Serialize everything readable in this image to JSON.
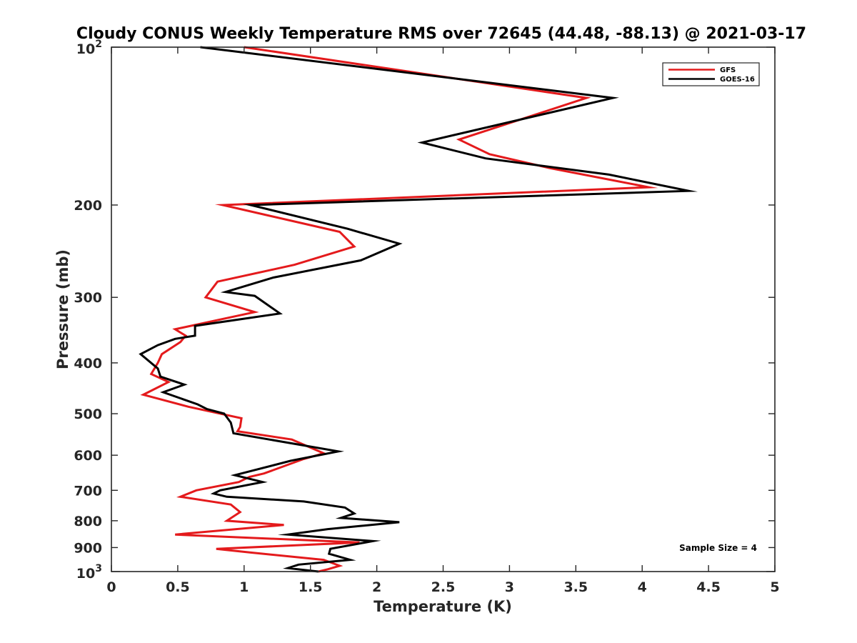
{
  "chart_data": {
    "type": "line",
    "title": "Cloudy CONUS Weekly Temperature RMS over 72645 (44.48, -88.13) @ 2021-03-17",
    "xlabel": "Temperature (K)",
    "ylabel": "Pressure (mb)",
    "xlim": [
      0,
      5
    ],
    "ylim": [
      100,
      1000
    ],
    "y_scale": "log",
    "y_reversed": true,
    "x_ticks": [
      0,
      0.5,
      1,
      1.5,
      2,
      2.5,
      3,
      3.5,
      4,
      4.5,
      5
    ],
    "x_tick_labels": [
      "0",
      "0.5",
      "1",
      "1.5",
      "2",
      "2.5",
      "3",
      "3.5",
      "4",
      "4.5",
      "5"
    ],
    "y_ticks": [
      200,
      300,
      400,
      500,
      600,
      700,
      800,
      900
    ],
    "y_tick_labels": [
      "200",
      "300",
      "400",
      "500",
      "600",
      "700",
      "800",
      "900"
    ],
    "y_decade_ticks": [
      {
        "value": 100,
        "base": "10",
        "exp": "2"
      },
      {
        "value": 1000,
        "base": "10",
        "exp": "3"
      }
    ],
    "grid": false,
    "legend_position": "top-right",
    "annotation": "Sample Size = 4",
    "series": [
      {
        "name": "GFS",
        "color": "#e41a1c",
        "points": [
          [
            1.0,
            100
          ],
          [
            3.58,
            125
          ],
          [
            2.62,
            150
          ],
          [
            2.85,
            160
          ],
          [
            3.3,
            170
          ],
          [
            4.05,
            185
          ],
          [
            0.84,
            200
          ],
          [
            1.72,
            225
          ],
          [
            1.83,
            240
          ],
          [
            1.38,
            260
          ],
          [
            0.8,
            280
          ],
          [
            0.71,
            300
          ],
          [
            1.08,
            320
          ],
          [
            0.48,
            345
          ],
          [
            0.56,
            355
          ],
          [
            0.52,
            365
          ],
          [
            0.38,
            385
          ],
          [
            0.35,
            400
          ],
          [
            0.3,
            420
          ],
          [
            0.43,
            435
          ],
          [
            0.24,
            460
          ],
          [
            0.58,
            485
          ],
          [
            0.98,
            510
          ],
          [
            0.97,
            530
          ],
          [
            0.95,
            540
          ],
          [
            1.36,
            560
          ],
          [
            1.6,
            595
          ],
          [
            1.45,
            610
          ],
          [
            1.15,
            650
          ],
          [
            1.04,
            660
          ],
          [
            0.96,
            675
          ],
          [
            0.64,
            700
          ],
          [
            0.52,
            720
          ],
          [
            0.9,
            745
          ],
          [
            0.97,
            770
          ],
          [
            0.87,
            800
          ],
          [
            1.3,
            815
          ],
          [
            0.48,
            850
          ],
          [
            1.87,
            880
          ],
          [
            0.79,
            905
          ],
          [
            1.05,
            920
          ],
          [
            1.6,
            950
          ],
          [
            1.72,
            975
          ],
          [
            1.63,
            990
          ],
          [
            1.56,
            1000
          ]
        ]
      },
      {
        "name": "GOES-16",
        "color": "#000000",
        "points": [
          [
            0.67,
            100
          ],
          [
            3.78,
            125
          ],
          [
            2.34,
            152
          ],
          [
            2.82,
            163
          ],
          [
            3.75,
            175
          ],
          [
            4.35,
            188
          ],
          [
            1.05,
            200
          ],
          [
            1.78,
            222
          ],
          [
            2.17,
            237
          ],
          [
            1.88,
            255
          ],
          [
            1.22,
            275
          ],
          [
            0.86,
            293
          ],
          [
            1.08,
            298
          ],
          [
            1.27,
            322
          ],
          [
            0.63,
            340
          ],
          [
            0.63,
            355
          ],
          [
            0.48,
            360
          ],
          [
            0.35,
            370
          ],
          [
            0.22,
            385
          ],
          [
            0.35,
            410
          ],
          [
            0.37,
            425
          ],
          [
            0.55,
            440
          ],
          [
            0.39,
            455
          ],
          [
            0.65,
            480
          ],
          [
            0.72,
            490
          ],
          [
            0.85,
            500
          ],
          [
            0.9,
            520
          ],
          [
            0.92,
            545
          ],
          [
            1.71,
            590
          ],
          [
            1.35,
            615
          ],
          [
            0.93,
            655
          ],
          [
            1.14,
            675
          ],
          [
            0.82,
            700
          ],
          [
            0.77,
            710
          ],
          [
            0.87,
            720
          ],
          [
            1.45,
            735
          ],
          [
            1.76,
            755
          ],
          [
            1.83,
            775
          ],
          [
            1.73,
            790
          ],
          [
            2.17,
            805
          ],
          [
            1.63,
            830
          ],
          [
            1.33,
            850
          ],
          [
            1.97,
            875
          ],
          [
            1.65,
            905
          ],
          [
            1.64,
            925
          ],
          [
            1.8,
            950
          ],
          [
            1.41,
            970
          ],
          [
            1.33,
            985
          ],
          [
            1.56,
            1000
          ]
        ]
      }
    ]
  }
}
